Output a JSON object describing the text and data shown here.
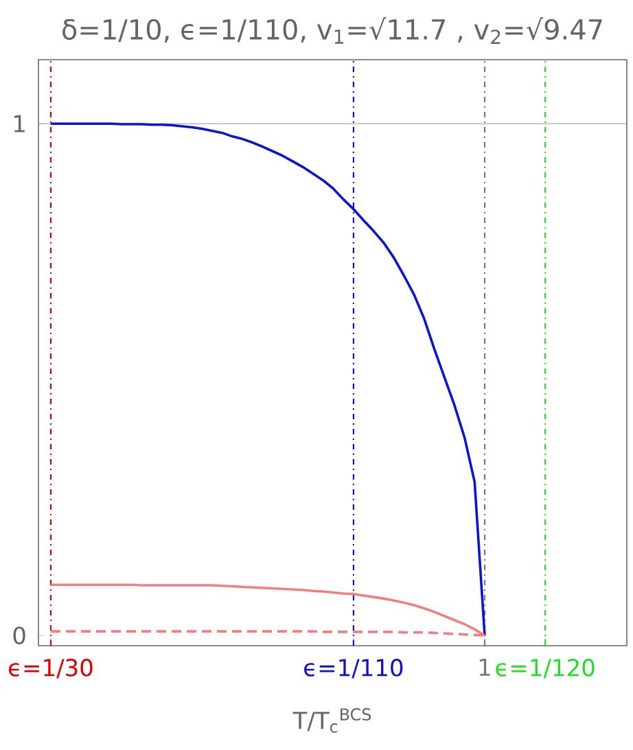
{
  "chart_data": {
    "type": "line",
    "title": "δ=1/10, ϵ=1/110, v$_{1}$=√11.7 , v$_{2}$=√9.47",
    "xlabel": "T/T$_{c}$$^{BCS}$",
    "categories": [
      "ϵ=1/30",
      null,
      null,
      null,
      null,
      null,
      null,
      null,
      null,
      null,
      null,
      null,
      null,
      null,
      null,
      null,
      null,
      null,
      null,
      null,
      null,
      null,
      null,
      null,
      null,
      null,
      null,
      null,
      null,
      null,
      "ϵ=1/110",
      null,
      null,
      null,
      null,
      null,
      null,
      null,
      null,
      null,
      null,
      null,
      null,
      "1",
      null,
      null,
      null,
      null,
      null,
      "ϵ=1/120"
    ],
    "ylim": [
      -0.02,
      1.125
    ],
    "yticks": [
      {
        "value": 0,
        "label": "0"
      },
      {
        "value": 1,
        "label": "1"
      }
    ],
    "series": [
      {
        "color": "#0a14d2",
        "line_style": "solid",
        "values": [
          1,
          1,
          1,
          1,
          1,
          1,
          1,
          0.999,
          0.999,
          0.999,
          0.998,
          0.998,
          0.997,
          0.995,
          0.993,
          0.99,
          0.986,
          0.982,
          0.975,
          0.97,
          0.963,
          0.955,
          0.946,
          0.937,
          0.926,
          0.915,
          0.902,
          0.889,
          0.873,
          0.852,
          0.833,
          0.811,
          0.79,
          0.767,
          0.738,
          0.703,
          0.666,
          0.619,
          0.56,
          0.505,
          0.45,
          0.387,
          0.3,
          0,
          null,
          null,
          null,
          null,
          null,
          null
        ]
      },
      {
        "color": "#f08080",
        "line_style": "solid",
        "values": [
          0.099,
          0.099,
          0.099,
          0.099,
          0.099,
          0.099,
          0.099,
          0.099,
          0.099,
          0.098,
          0.098,
          0.098,
          0.098,
          0.098,
          0.098,
          0.098,
          0.098,
          0.097,
          0.096,
          0.095,
          0.094,
          0.093,
          0.092,
          0.091,
          0.09,
          0.089,
          0.087,
          0.086,
          0.084,
          0.082,
          0.081,
          0.078,
          0.075,
          0.072,
          0.068,
          0.064,
          0.059,
          0.053,
          0.046,
          0.038,
          0.03,
          0.022,
          0.012,
          0,
          null,
          null,
          null,
          null,
          null,
          null
        ]
      },
      {
        "color": "#f08080",
        "line_style": "dashed",
        "values": [
          0.008,
          0.008,
          0.008,
          0.008,
          0.008,
          0.008,
          0.008,
          0.008,
          0.008,
          0.008,
          0.008,
          0.008,
          0.008,
          0.008,
          0.008,
          0.008,
          0.008,
          0.008,
          0.008,
          0.008,
          0.008,
          0.008,
          0.008,
          0.008,
          0.008,
          0.008,
          0.008,
          0.007,
          0.007,
          0.007,
          0.007,
          0.007,
          0.007,
          0.007,
          0.007,
          0.006,
          0.006,
          0.006,
          0.005,
          0.004,
          0.003,
          0.002,
          0.001,
          0,
          null,
          null,
          null,
          null,
          null,
          null
        ]
      }
    ],
    "ref_lines": [
      {
        "axis": "y",
        "value": 1,
        "color": "#999999",
        "line_style": "solid"
      },
      {
        "axis": "x",
        "value": "ϵ=1/30",
        "color": "#dd0000",
        "line_style": "dashdot"
      },
      {
        "axis": "x",
        "value": "ϵ=1/110",
        "color": "#1010cc",
        "line_style": "dashdot"
      },
      {
        "axis": "x",
        "value": "1",
        "color": "#777777",
        "line_style": "dashdot"
      },
      {
        "axis": "x",
        "value": "ϵ=1/120",
        "color": "#22dd22",
        "line_style": "dashdot"
      }
    ]
  }
}
